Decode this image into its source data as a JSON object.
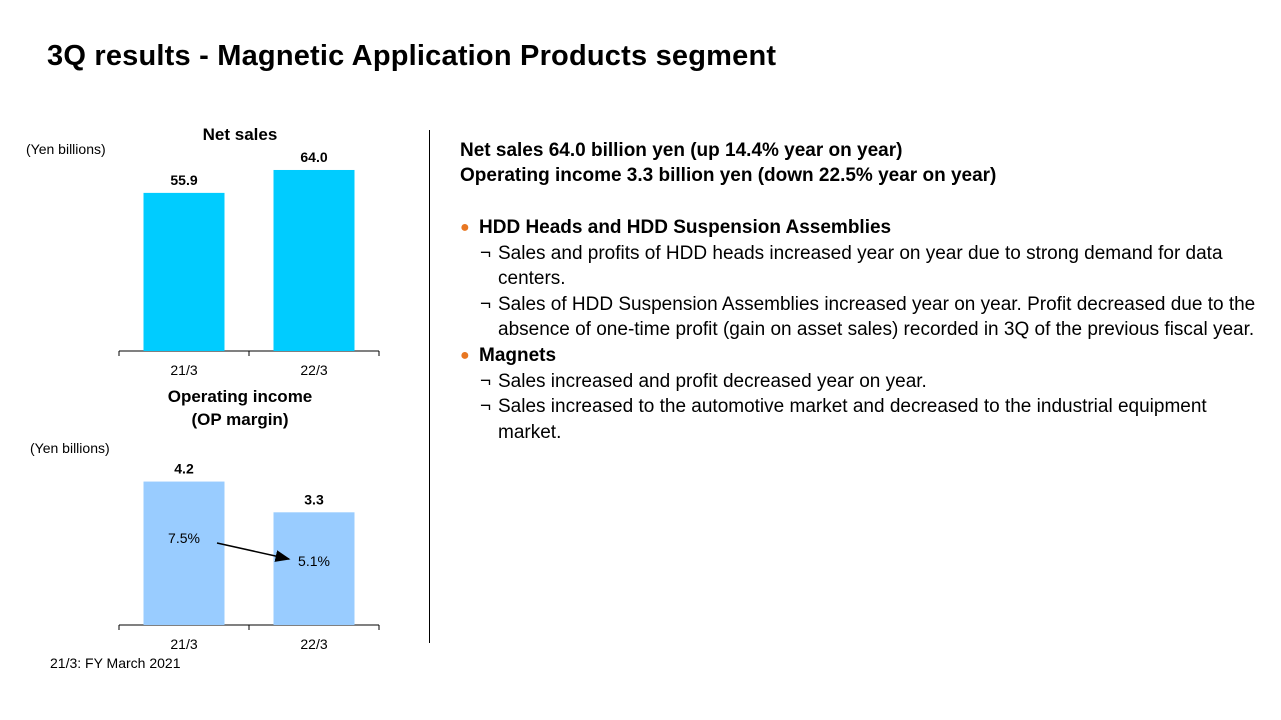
{
  "title": "3Q results - Magnetic Application Products segment",
  "net_sales_chart": {
    "title": "Net sales",
    "unit": "(Yen billions)"
  },
  "op_income_chart": {
    "title_line1": "Operating income",
    "title_line2": "(OP margin)",
    "unit": "(Yen billions)"
  },
  "footnote": "21/3: FY March 2021",
  "summary": {
    "net_sales": "Net sales  64.0 billion  yen (up 14.4% year on year)",
    "operating_income": "Operating income  3.3 billion  yen (down 22.5% year on year)"
  },
  "sections": [
    {
      "bullet": "●",
      "heading": "HDD Heads and HDD Suspension Assemblies",
      "items": [
        {
          "mark": "¬",
          "text": "Sales and profits of HDD heads increased year on year due to strong demand  for data centers."
        },
        {
          "mark": "¬",
          "text": "Sales of HDD Suspension Assemblies  increased year on year. Profit decreased due to the absence of one-time profit (gain on asset sales) recorded in 3Q of the previous fiscal year."
        }
      ]
    },
    {
      "bullet": "●",
      "heading": "Magnets",
      "items": [
        {
          "mark": "¬",
          "text": "Sales increased and profit decreased year on year."
        },
        {
          "mark": "¬",
          "text": "Sales increased to the automotive market  and decreased to the industrial equipment  market."
        }
      ]
    }
  ],
  "colors": {
    "net_sales_bar": "#00CCFF",
    "op_income_bar": "#99CCFF",
    "bullet": "#E87722"
  },
  "chart_data": [
    {
      "type": "bar",
      "title": "Net sales",
      "ylabel": "(Yen billions)",
      "categories": [
        "21/3",
        "22/3"
      ],
      "values": [
        55.9,
        64.0
      ],
      "value_labels": [
        "55.9",
        "64.0"
      ],
      "ylim": [
        0,
        70
      ]
    },
    {
      "type": "bar",
      "title": "Operating income (OP margin)",
      "ylabel": "(Yen billions)",
      "categories": [
        "21/3",
        "22/3"
      ],
      "values": [
        4.2,
        3.3
      ],
      "value_labels": [
        "4.2",
        "3.3"
      ],
      "op_margin": [
        "7.5%",
        "5.1%"
      ],
      "ylim": [
        0,
        5.3
      ]
    }
  ]
}
